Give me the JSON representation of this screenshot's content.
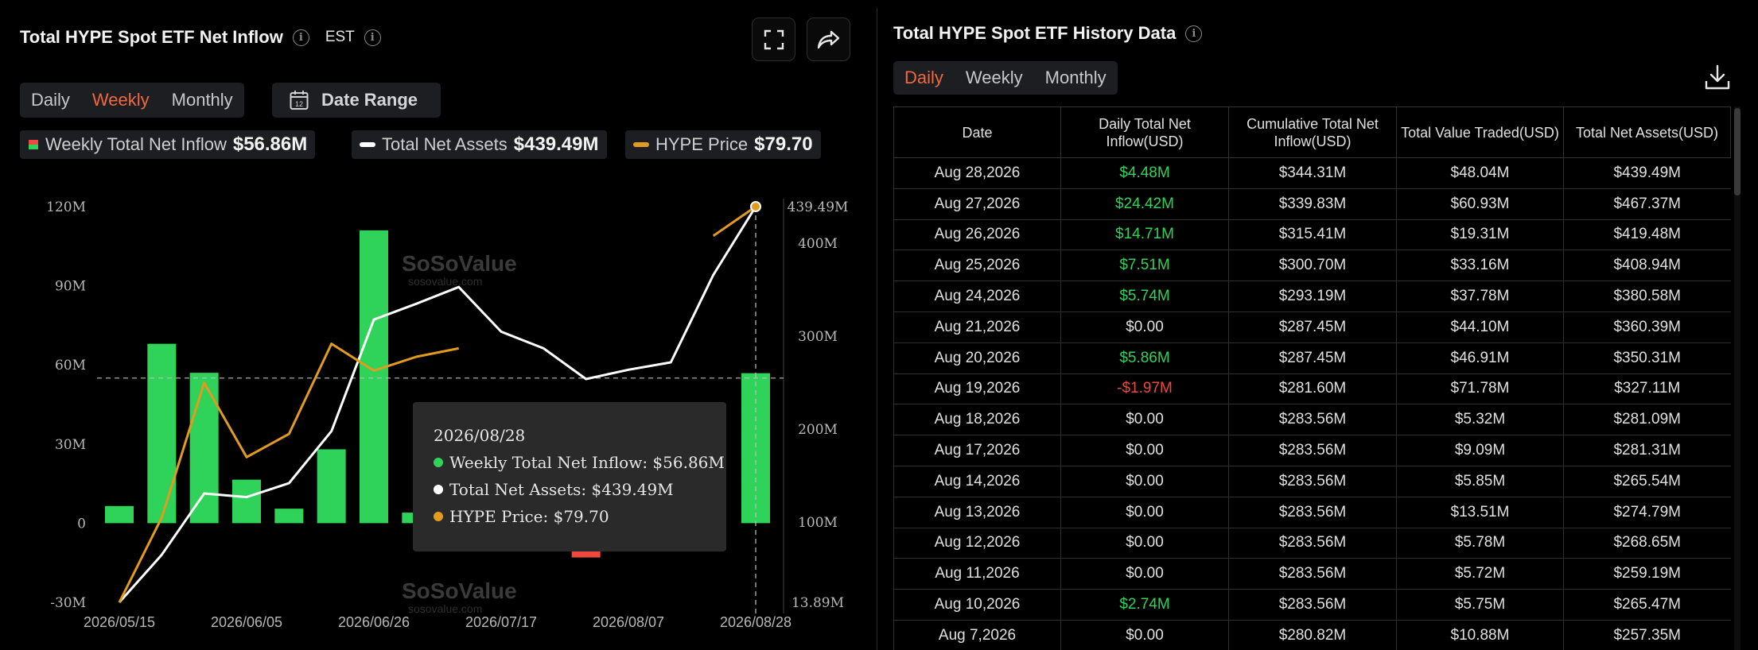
{
  "left": {
    "title": "Total HYPE Spot ETF Net Inflow",
    "timezone": "EST",
    "tabs": [
      "Daily",
      "Weekly",
      "Monthly"
    ],
    "active_tab": "Weekly",
    "date_range_label": "Date Range",
    "calendar_day": "12",
    "legend": [
      {
        "label": "Weekly Total Net Inflow",
        "value": "$56.86M"
      },
      {
        "label": "Total Net Assets",
        "value": "$439.49M"
      },
      {
        "label": "HYPE Price",
        "value": "$79.70"
      }
    ],
    "tooltip": {
      "date": "2026/08/28",
      "rows": [
        "Weekly Total Net Inflow: $56.86M",
        "Total Net Assets: $439.49M",
        "HYPE Price: $79.70"
      ]
    },
    "watermark": {
      "brand": "SoSoValue",
      "url": "sosovalue.com"
    }
  },
  "chart_data": {
    "type": "bar",
    "x": [
      "2026/05/15",
      "2026/05/22",
      "2026/05/29",
      "2026/06/05",
      "2026/06/12",
      "2026/06/19",
      "2026/06/26",
      "2026/07/03",
      "2026/07/10",
      "2026/07/17",
      "2026/07/24",
      "2026/07/31",
      "2026/08/07",
      "2026/08/14",
      "2026/08/21",
      "2026/08/28"
    ],
    "xtick_labels": [
      "2026/05/15",
      "2026/06/05",
      "2026/06/26",
      "2026/07/17",
      "2026/08/07",
      "2026/08/28"
    ],
    "left_axis": {
      "ticks": [
        "120M",
        "90M",
        "60M",
        "30M",
        "0",
        "-30M"
      ],
      "tick_values": [
        120,
        90,
        60,
        30,
        0,
        -30
      ],
      "ylim": [
        -30,
        120
      ]
    },
    "right_axis": {
      "ticks": [
        "439.49M",
        "400M",
        "300M",
        "200M",
        "100M",
        "13.89M"
      ],
      "tick_values": [
        439.49,
        400,
        300,
        200,
        100,
        13.89
      ],
      "ylim": [
        13.89,
        439.49
      ]
    },
    "series": [
      {
        "name": "Weekly Total Net Inflow",
        "color": "#2fd35a",
        "negative_color": "#f0483e",
        "axis": "left",
        "values": [
          6.5,
          68,
          57,
          16.5,
          5.5,
          28,
          111,
          4,
          null,
          null,
          null,
          -13,
          null,
          null,
          null,
          56.86
        ]
      },
      {
        "name": "Total Net Assets",
        "color": "#ffffff",
        "axis": "right",
        "values": [
          13.89,
          65,
          131,
          127,
          142,
          198,
          318,
          335,
          353,
          305,
          287,
          254,
          264,
          272,
          366,
          439.49
        ]
      },
      {
        "name": "HYPE Price",
        "color": "#e39b1f",
        "axis": "right_scaled",
        "values": [
          13.89,
          105,
          250,
          170,
          195,
          292,
          263,
          278,
          287,
          null,
          null,
          null,
          null,
          null,
          408,
          439.49
        ]
      }
    ],
    "reference_line_y": 55,
    "highlight_index": 15,
    "grid": false,
    "legend_position": "top-left"
  },
  "right": {
    "title": "Total HYPE Spot ETF History Data",
    "tabs": [
      "Daily",
      "Weekly",
      "Monthly"
    ],
    "active_tab": "Daily",
    "columns": [
      "Date",
      "Daily Total Net Inflow(USD)",
      "Cumulative Total Net Inflow(USD)",
      "Total Value Traded(USD)",
      "Total Net Assets(USD)"
    ],
    "rows": [
      {
        "date": "Aug 28,2026",
        "daily": "$4.48M",
        "sign": "pos",
        "cum": "$344.31M",
        "traded": "$48.04M",
        "assets": "$439.49M"
      },
      {
        "date": "Aug 27,2026",
        "daily": "$24.42M",
        "sign": "pos",
        "cum": "$339.83M",
        "traded": "$60.93M",
        "assets": "$467.37M"
      },
      {
        "date": "Aug 26,2026",
        "daily": "$14.71M",
        "sign": "pos",
        "cum": "$315.41M",
        "traded": "$19.31M",
        "assets": "$419.48M"
      },
      {
        "date": "Aug 25,2026",
        "daily": "$7.51M",
        "sign": "pos",
        "cum": "$300.70M",
        "traded": "$33.16M",
        "assets": "$408.94M"
      },
      {
        "date": "Aug 24,2026",
        "daily": "$5.74M",
        "sign": "pos",
        "cum": "$293.19M",
        "traded": "$37.78M",
        "assets": "$380.58M"
      },
      {
        "date": "Aug 21,2026",
        "daily": "$0.00",
        "sign": "zero",
        "cum": "$287.45M",
        "traded": "$44.10M",
        "assets": "$360.39M"
      },
      {
        "date": "Aug 20,2026",
        "daily": "$5.86M",
        "sign": "pos",
        "cum": "$287.45M",
        "traded": "$46.91M",
        "assets": "$350.31M"
      },
      {
        "date": "Aug 19,2026",
        "daily": "-$1.97M",
        "sign": "neg",
        "cum": "$281.60M",
        "traded": "$71.78M",
        "assets": "$327.11M"
      },
      {
        "date": "Aug 18,2026",
        "daily": "$0.00",
        "sign": "zero",
        "cum": "$283.56M",
        "traded": "$5.32M",
        "assets": "$281.09M"
      },
      {
        "date": "Aug 17,2026",
        "daily": "$0.00",
        "sign": "zero",
        "cum": "$283.56M",
        "traded": "$9.09M",
        "assets": "$281.31M"
      },
      {
        "date": "Aug 14,2026",
        "daily": "$0.00",
        "sign": "zero",
        "cum": "$283.56M",
        "traded": "$5.85M",
        "assets": "$265.54M"
      },
      {
        "date": "Aug 13,2026",
        "daily": "$0.00",
        "sign": "zero",
        "cum": "$283.56M",
        "traded": "$13.51M",
        "assets": "$274.79M"
      },
      {
        "date": "Aug 12,2026",
        "daily": "$0.00",
        "sign": "zero",
        "cum": "$283.56M",
        "traded": "$5.78M",
        "assets": "$268.65M"
      },
      {
        "date": "Aug 11,2026",
        "daily": "$0.00",
        "sign": "zero",
        "cum": "$283.56M",
        "traded": "$5.72M",
        "assets": "$259.19M"
      },
      {
        "date": "Aug 10,2026",
        "daily": "$2.74M",
        "sign": "pos",
        "cum": "$283.56M",
        "traded": "$5.75M",
        "assets": "$265.47M"
      },
      {
        "date": "Aug 7,2026",
        "daily": "$0.00",
        "sign": "zero",
        "cum": "$280.82M",
        "traded": "$10.88M",
        "assets": "$257.35M"
      }
    ]
  },
  "colors": {
    "accent": "#f2683c",
    "positive": "#2fd35a",
    "negative": "#f0483e",
    "price": "#e39b1f"
  }
}
